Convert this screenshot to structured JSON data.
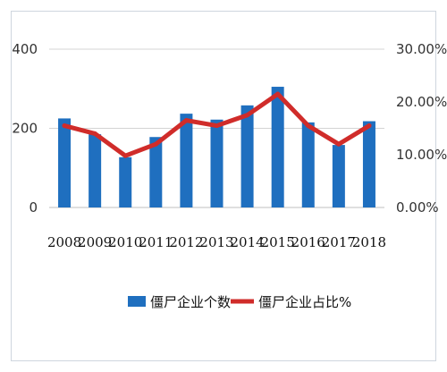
{
  "chart_data": {
    "type": "bar",
    "categories": [
      "2008",
      "2009",
      "2010",
      "2011",
      "2012",
      "2013",
      "2014",
      "2015",
      "2016",
      "2017",
      "2018"
    ],
    "series": [
      {
        "name": "僵尸企业个数",
        "type": "bar",
        "axis": "left",
        "color": "#1f6fbf",
        "values": [
          225,
          185,
          127,
          178,
          237,
          222,
          258,
          305,
          215,
          158,
          218
        ]
      },
      {
        "name": "僵尸企业占比%",
        "type": "line",
        "axis": "right",
        "color": "#d02c2a",
        "values": [
          0.155,
          0.14,
          0.098,
          0.12,
          0.165,
          0.155,
          0.175,
          0.215,
          0.155,
          0.12,
          0.155
        ]
      }
    ],
    "y_left": {
      "min": 0,
      "max": 400,
      "ticks": [
        "0",
        "200",
        "400"
      ]
    },
    "y_right": {
      "min": 0,
      "max": 0.3,
      "ticks": [
        "0.00%",
        "10.00%",
        "20.00%",
        "30.00%"
      ]
    },
    "grid": true,
    "legend_position": "bottom"
  }
}
